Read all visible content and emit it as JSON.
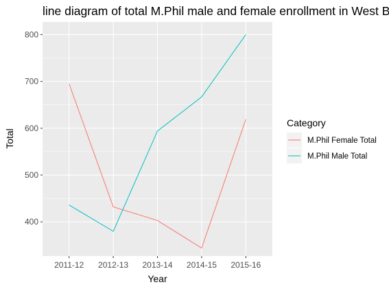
{
  "chart_data": {
    "type": "line",
    "title": "line diagram of total M.Phil male and female enrollment in West B",
    "xlabel": "Year",
    "ylabel": "Total",
    "categories": [
      "2011-12",
      "2012-13",
      "2013-14",
      "2014-15",
      "2015-16"
    ],
    "y_ticks": [
      "400",
      "500",
      "600",
      "700",
      "800"
    ],
    "ylim": [
      327,
      827
    ],
    "grid": true,
    "legend_position": "right",
    "legend_title": "Category",
    "series": [
      {
        "name": "M.Phil Female Total",
        "color": "#F8766D",
        "values": [
          695,
          432,
          403,
          344,
          619
        ]
      },
      {
        "name": "M.Phil Male Total",
        "color": "#00BFC4",
        "values": [
          436,
          380,
          594,
          667,
          800
        ]
      }
    ]
  }
}
